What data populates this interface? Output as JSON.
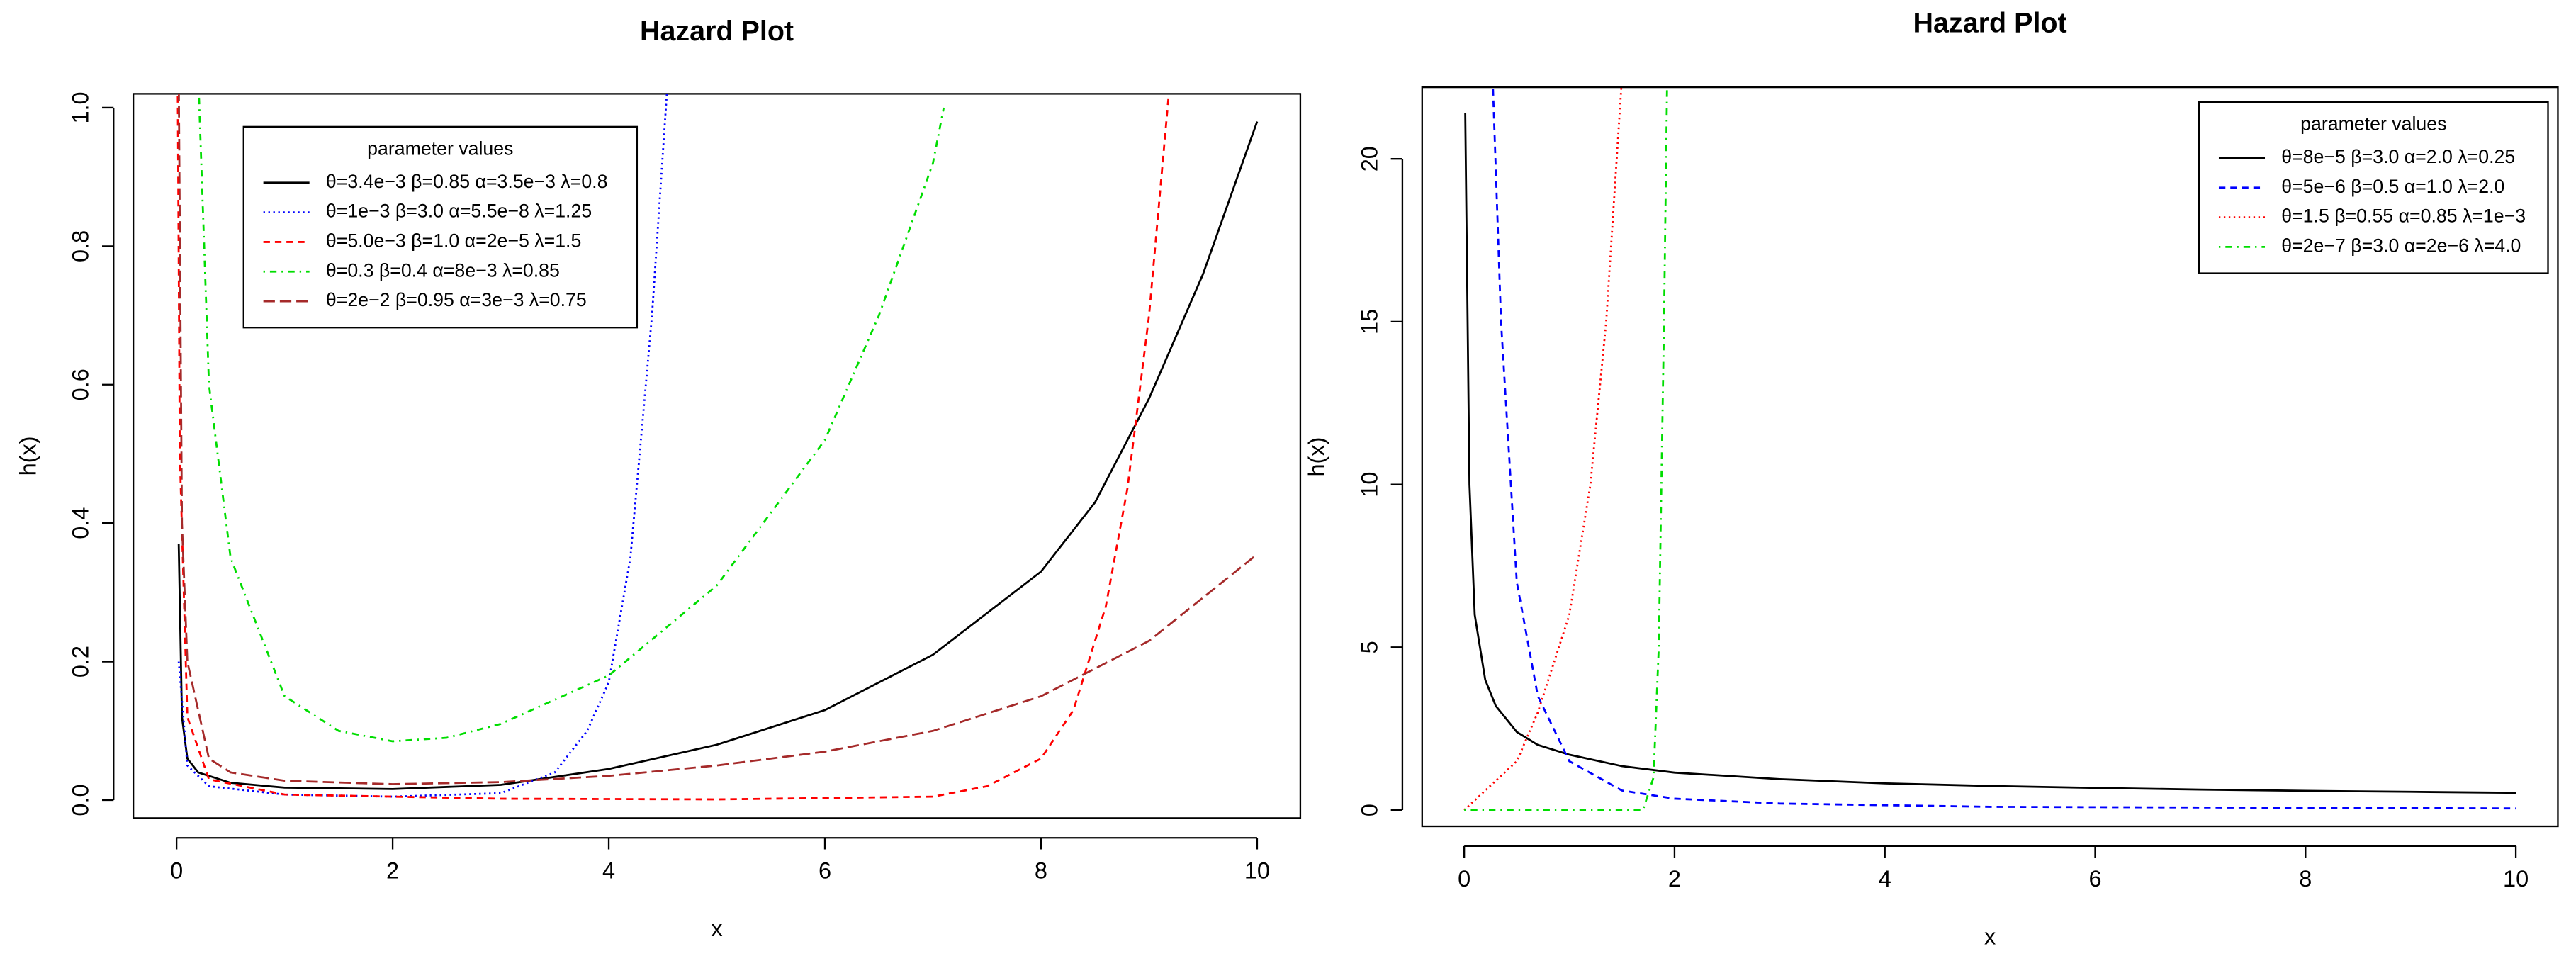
{
  "chart_data": [
    {
      "type": "line",
      "title": "Hazard Plot",
      "xlabel": "x",
      "ylabel": "h(x)",
      "xlim": [
        -0.4,
        10.4
      ],
      "ylim": [
        -0.026,
        1.02
      ],
      "xticks": [
        0,
        2,
        4,
        6,
        8,
        10
      ],
      "yticks": [
        {
          "value": 0,
          "label": "0.0"
        },
        0.2,
        0.4,
        0.6,
        0.8,
        {
          "value": 1,
          "label": "1.0"
        }
      ],
      "legend_title": "parameter values",
      "legend": "top-left",
      "series": [
        {
          "name": "θ=3.4e−3 β=0.85 α=3.5e−3 λ=0.8",
          "color": "#000000",
          "dash": "solid",
          "x": [
            0.02,
            0.05,
            0.1,
            0.2,
            0.5,
            1,
            2,
            3,
            4,
            5,
            6,
            7,
            8,
            8.5,
            9,
            9.5,
            10
          ],
          "values": [
            0.37,
            0.12,
            0.06,
            0.04,
            0.025,
            0.018,
            0.016,
            0.022,
            0.045,
            0.08,
            0.13,
            0.21,
            0.33,
            0.43,
            0.58,
            0.76,
            0.98
          ]
        },
        {
          "name": "θ=1e−3 β=3.0 α=5.5e−8 λ=1.25",
          "color": "#0000ff",
          "dash": "dotted",
          "x": [
            0.02,
            0.1,
            0.3,
            1,
            2,
            3,
            3.5,
            3.8,
            4,
            4.2,
            4.4,
            4.55
          ],
          "values": [
            0.2,
            0.05,
            0.02,
            0.008,
            0.005,
            0.01,
            0.04,
            0.1,
            0.17,
            0.35,
            0.7,
            1.05
          ]
        },
        {
          "name": "θ=5.0e−3 β=1.0 α=2e−5 λ=1.5",
          "color": "#ff0000",
          "dash": "dashed",
          "x": [
            0.01,
            0.03,
            0.1,
            0.3,
            1,
            3,
            5,
            7,
            7.5,
            8,
            8.3,
            8.6,
            8.8,
            9,
            9.2
          ],
          "values": [
            1.05,
            0.5,
            0.12,
            0.03,
            0.008,
            0.002,
            0.001,
            0.005,
            0.02,
            0.06,
            0.13,
            0.28,
            0.45,
            0.7,
            1.05
          ]
        },
        {
          "name": "θ=0.3 β=0.4 α=8e−3 λ=0.85",
          "color": "#00dd00",
          "dash": "dashdot",
          "x": [
            0.2,
            0.3,
            0.5,
            1,
            1.5,
            2,
            2.5,
            3,
            4,
            5,
            6,
            6.5,
            7,
            7.1
          ],
          "values": [
            1.05,
            0.6,
            0.35,
            0.15,
            0.1,
            0.085,
            0.09,
            0.11,
            0.18,
            0.31,
            0.52,
            0.7,
            0.92,
            1.0
          ]
        },
        {
          "name": "θ=2e−2 β=0.95 α=3e−3 λ=0.75",
          "color": "#a52a2a",
          "dash": "longdash",
          "x": [
            0.02,
            0.05,
            0.1,
            0.3,
            0.5,
            1,
            2,
            3,
            4,
            5,
            6,
            7,
            8,
            9,
            10
          ],
          "values": [
            1.05,
            0.4,
            0.2,
            0.06,
            0.04,
            0.028,
            0.023,
            0.026,
            0.035,
            0.05,
            0.07,
            0.1,
            0.15,
            0.23,
            0.355
          ]
        }
      ]
    },
    {
      "type": "line",
      "title": "Hazard Plot",
      "xlabel": "x",
      "ylabel": "h(x)",
      "xlim": [
        -0.4,
        10.4
      ],
      "ylim": [
        -0.5,
        22.2
      ],
      "xticks": [
        0,
        2,
        4,
        6,
        8,
        10
      ],
      "yticks": [
        0,
        5,
        10,
        15,
        20
      ],
      "legend_title": "parameter values",
      "legend": "top-right",
      "series": [
        {
          "name": "θ=8e−5 β=3.0 α=2.0 λ=0.25",
          "color": "#000000",
          "dash": "solid",
          "x": [
            0.01,
            0.05,
            0.1,
            0.2,
            0.3,
            0.5,
            0.7,
            1,
            1.5,
            2,
            3,
            4,
            5,
            6,
            7,
            8,
            9,
            10
          ],
          "values": [
            21.4,
            10,
            6,
            4,
            3.2,
            2.4,
            2,
            1.7,
            1.35,
            1.15,
            0.95,
            0.82,
            0.74,
            0.68,
            0.63,
            0.59,
            0.56,
            0.53
          ]
        },
        {
          "name": "θ=5e−6 β=0.5 α=1.0 λ=2.0",
          "color": "#0000ff",
          "dash": "dashed",
          "x": [
            0.27,
            0.35,
            0.5,
            0.7,
            1,
            1.5,
            2,
            3,
            5,
            10
          ],
          "values": [
            22.5,
            15,
            7,
            3.5,
            1.5,
            0.6,
            0.35,
            0.2,
            0.1,
            0.05
          ]
        },
        {
          "name": "θ=1.5 β=0.55 α=0.85 λ=1e−3",
          "color": "#ff0000",
          "dash": "dotted",
          "x": [
            0,
            0.5,
            0.7,
            1,
            1.2,
            1.35,
            1.45,
            1.5
          ],
          "values": [
            0,
            1.5,
            3,
            6,
            10,
            15,
            20,
            22.5
          ]
        },
        {
          "name": "θ=2e−7 β=3.0 α=2e−6 λ=4.0",
          "color": "#00dd00",
          "dash": "dashdot",
          "x": [
            0,
            1,
            1.7,
            1.8,
            1.85,
            1.9,
            1.93
          ],
          "values": [
            0,
            0,
            0,
            1,
            5,
            15,
            22.5
          ]
        }
      ]
    }
  ]
}
